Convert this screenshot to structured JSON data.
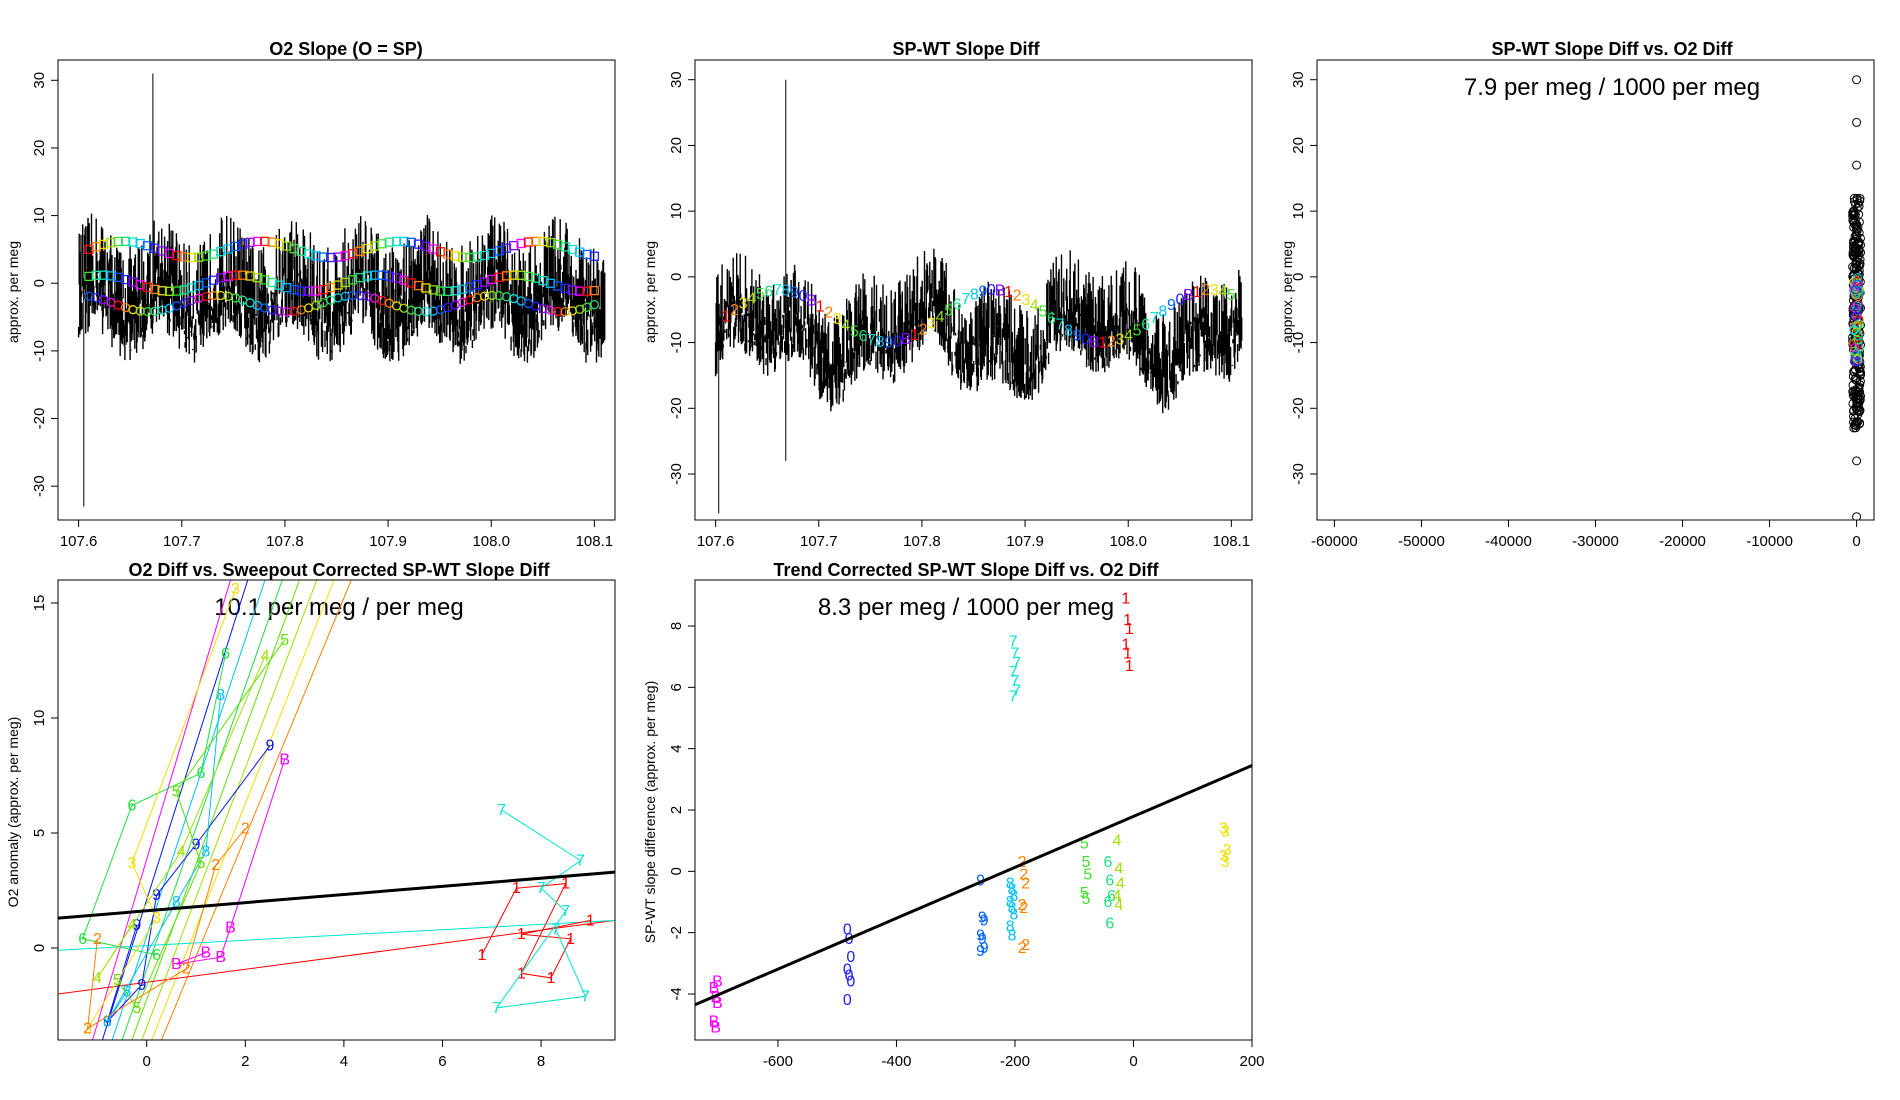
{
  "figure": {
    "panels": [
      {
        "id": "p1",
        "title": "O2 Slope (O = SP)",
        "ylabel": "approx. per meg",
        "xlim": [
          107.58,
          108.12
        ],
        "ylim": [
          -35,
          33
        ],
        "xticks": [
          "107.6",
          "107.7",
          "107.8",
          "107.9",
          "108.0",
          "108.1"
        ],
        "yticks": [
          "-30",
          "-20",
          "-10",
          "0",
          "10",
          "20",
          "30"
        ]
      },
      {
        "id": "p2",
        "title": "SP-WT Slope Diff",
        "ylabel": "approx. per meg",
        "xlim": [
          107.58,
          108.12
        ],
        "ylim": [
          -37,
          33
        ],
        "xticks": [
          "107.6",
          "107.7",
          "107.8",
          "107.9",
          "108.0",
          "108.1"
        ],
        "yticks": [
          "-30",
          "-20",
          "-10",
          "0",
          "10",
          "20",
          "30"
        ]
      },
      {
        "id": "p3",
        "title": "SP-WT Slope Diff vs. O2 Diff",
        "ylabel": "approx. per meg",
        "annotation": "7.9 per meg / 1000 per meg",
        "xlim": [
          -62000,
          2000
        ],
        "ylim": [
          -37,
          33
        ],
        "xticks": [
          "-60000",
          "-50000",
          "-40000",
          "-30000",
          "-20000",
          "-10000",
          "0"
        ],
        "yticks": [
          "-30",
          "-20",
          "-10",
          "0",
          "10",
          "20",
          "30"
        ]
      },
      {
        "id": "p4",
        "title": "O2 Diff vs. Sweepout Corrected SP-WT Slope Diff",
        "ylabel": "O2 anomaly (approx. per meg)",
        "annotation": "10.1 per meg / per meg",
        "xlim": [
          -1.8,
          9.5
        ],
        "ylim": [
          -4,
          16
        ],
        "xticks": [
          "0",
          "2",
          "4",
          "6",
          "8"
        ],
        "yticks": [
          "0",
          "5",
          "10",
          "15"
        ]
      },
      {
        "id": "p5",
        "title": "Trend Corrected SP-WT Slope Diff vs. O2 Diff",
        "ylabel": "SP-WT slope difference (approx. per meg)",
        "annotation": "8.3 per meg / 1000 per meg",
        "xlim": [
          -740,
          200
        ],
        "ylim": [
          -5.5,
          9.5
        ],
        "xticks": [
          "-600",
          "-400",
          "-200",
          "0",
          "200"
        ],
        "yticks": [
          "-4",
          "-2",
          "0",
          "2",
          "4",
          "6",
          "8"
        ]
      }
    ]
  },
  "chart_data": [
    {
      "panel": "p1",
      "type": "line",
      "title": "O2 Slope (O = SP)",
      "ylabel": "approx. per meg",
      "xlim": [
        107.6,
        108.11
      ],
      "series_note": "dense black noise trace about 0, band roughly -10..10, spikes to 31 and -33",
      "spikes": [
        {
          "x": 107.605,
          "y": -33
        },
        {
          "x": 107.672,
          "y": 31
        }
      ],
      "marker_series": [
        {
          "name": "upper squares",
          "marker": "square",
          "y": 5
        },
        {
          "name": "mid squares",
          "marker": "square",
          "y": 0
        },
        {
          "name": "lower circles",
          "marker": "circle",
          "y": -3
        }
      ]
    },
    {
      "panel": "p2",
      "type": "line",
      "title": "SP-WT Slope Diff",
      "ylabel": "approx. per meg",
      "xlim": [
        107.6,
        108.11
      ],
      "series_note": "dense black noise trace centred near -7, band roughly -20..8",
      "spikes": [
        {
          "x": 107.603,
          "y": -36
        },
        {
          "x": 107.668,
          "y": 30
        },
        {
          "x": 107.668,
          "y": -28
        }
      ],
      "digit_labels": [
        {
          "label": "1",
          "y": 0
        },
        {
          "label": "7",
          "y": 0
        },
        {
          "label": "4",
          "y": -2
        },
        {
          "label": "3",
          "y": -5
        },
        {
          "label": "2",
          "y": -9
        },
        {
          "label": "8",
          "y": -8
        },
        {
          "label": "B",
          "y": -10
        },
        {
          "label": "6",
          "y": -6
        }
      ]
    },
    {
      "panel": "p3",
      "type": "scatter",
      "title": "SP-WT Slope Diff vs. O2 Diff",
      "annotation": "7.9 per meg / 1000 per meg",
      "xlim": [
        -62000,
        2000
      ],
      "ylim": [
        -37,
        33
      ],
      "points": [
        {
          "x": 0,
          "y": 30
        },
        {
          "x": 0,
          "y": 23.5
        },
        {
          "x": 0,
          "y": 17
        },
        {
          "x": 0,
          "y": -28
        },
        {
          "x": 0,
          "y": -36.5
        }
      ],
      "cluster": {
        "x": 0,
        "ymin": -23,
        "ymax": 12,
        "colored_band": [
          -13,
          0
        ]
      }
    },
    {
      "panel": "p4",
      "type": "line",
      "title": "O2 Diff vs. Sweepout Corrected SP-WT Slope Diff",
      "annotation": "10.1 per meg / per meg",
      "fit_line": {
        "x": [
          -1.8,
          9.5
        ],
        "y": [
          1.3,
          3.3
        ]
      },
      "groups": [
        {
          "label": "1",
          "color": "#ff0000",
          "points": [
            [
              6.8,
              -0.3
            ],
            [
              7.5,
              2.6
            ],
            [
              8.5,
              2.8
            ],
            [
              7.6,
              -1.1
            ],
            [
              8.2,
              -1.3
            ],
            [
              8.6,
              0.4
            ],
            [
              7.6,
              0.6
            ],
            [
              9.0,
              1.2
            ]
          ]
        },
        {
          "label": "7",
          "color": "#00e5d0",
          "points": [
            [
              7.2,
              6.0
            ],
            [
              8.8,
              3.8
            ],
            [
              8.0,
              2.6
            ],
            [
              8.5,
              1.6
            ],
            [
              7.1,
              -2.6
            ],
            [
              8.9,
              -2.1
            ],
            [
              8.3,
              0.8
            ]
          ]
        },
        {
          "label": "B",
          "color": "#ff00ff",
          "points": [
            [
              2.8,
              8.2
            ],
            [
              1.7,
              0.9
            ],
            [
              1.5,
              -0.4
            ],
            [
              0.6,
              -0.7
            ],
            [
              1.2,
              -0.2
            ]
          ]
        },
        {
          "label": "9",
          "color": "#0010ff",
          "points": [
            [
              2.5,
              8.8
            ],
            [
              1.0,
              4.5
            ],
            [
              0.2,
              2.3
            ],
            [
              -0.1,
              -1.6
            ],
            [
              -0.8,
              -3.2
            ],
            [
              -0.2,
              1.0
            ]
          ]
        },
        {
          "label": "8",
          "color": "#00c0ff",
          "points": [
            [
              1.5,
              11.0
            ],
            [
              1.2,
              4.2
            ],
            [
              0.6,
              2.0
            ],
            [
              -0.8,
              -3.2
            ],
            [
              -0.4,
              -1.9
            ]
          ]
        },
        {
          "label": "6",
          "color": "#20e040",
          "points": [
            [
              1.6,
              12.8
            ],
            [
              1.1,
              7.6
            ],
            [
              -0.3,
              6.2
            ],
            [
              -1.3,
              0.4
            ],
            [
              0.2,
              -0.3
            ]
          ]
        },
        {
          "label": "5",
          "color": "#60e000",
          "points": [
            [
              2.8,
              13.4
            ],
            [
              0.6,
              6.8
            ],
            [
              1.1,
              3.7
            ],
            [
              -0.2,
              -2.6
            ],
            [
              -0.6,
              -1.4
            ]
          ]
        },
        {
          "label": "4",
          "color": "#a0e000",
          "points": [
            [
              2.4,
              12.7
            ],
            [
              0.7,
              4.2
            ],
            [
              -1.0,
              -1.3
            ],
            [
              -0.3,
              1.0
            ]
          ]
        },
        {
          "label": "3",
          "color": "#f0e000",
          "points": [
            [
              1.8,
              15.6
            ],
            [
              -0.3,
              3.7
            ],
            [
              0.2,
              1.3
            ],
            [
              -1.2,
              -3.5
            ]
          ]
        },
        {
          "label": "2",
          "color": "#ff8000",
          "points": [
            [
              2.0,
              5.2
            ],
            [
              1.4,
              3.6
            ],
            [
              0.8,
              -0.9
            ],
            [
              -1.2,
              -3.5
            ],
            [
              -1.0,
              0.4
            ]
          ]
        }
      ]
    },
    {
      "panel": "p5",
      "type": "scatter",
      "title": "Trend Corrected SP-WT Slope Diff vs. O2 Diff",
      "annotation": "8.3 per meg / 1000 per meg",
      "fit_line": {
        "x": [
          -740,
          200
        ],
        "y": [
          -4.35,
          3.45
        ]
      },
      "groups": [
        {
          "label": "B",
          "color": "#ff00ff",
          "x": -705,
          "y": [
            -3.8,
            -4.1,
            -4.3,
            -4.9,
            -5.1,
            -3.6
          ]
        },
        {
          "label": "0",
          "color": "#2020ff",
          "x": -480,
          "y": [
            -1.9,
            -2.2,
            -2.8,
            -3.2,
            -3.4,
            -3.6,
            -4.2
          ]
        },
        {
          "label": "9",
          "color": "#0060ff",
          "x": -255,
          "y": [
            -0.3,
            -1.5,
            -1.6,
            -2.1,
            -2.2,
            -2.5,
            -2.6
          ]
        },
        {
          "label": "8",
          "color": "#00c0ff",
          "x": -205,
          "y": [
            -0.4,
            -0.6,
            -0.8,
            -1.0,
            -1.2,
            -1.4,
            -1.8,
            -2.1
          ]
        },
        {
          "label": "2",
          "color": "#ff8000",
          "x": -185,
          "y": [
            0.3,
            -0.1,
            -0.4,
            -1.1,
            -1.2,
            -2.4,
            -2.5
          ]
        },
        {
          "label": "7",
          "color": "#00e5d0",
          "x": -200,
          "y": [
            7.5,
            7.1,
            6.8,
            6.5,
            6.2,
            5.9,
            5.7
          ]
        },
        {
          "label": "1",
          "color": "#ff0000",
          "x": -10,
          "y": [
            8.9,
            8.2,
            7.9,
            7.4,
            7.1,
            6.7
          ]
        },
        {
          "label": "5",
          "color": "#40e030",
          "x": -80,
          "y": [
            0.9,
            0.3,
            -0.1,
            -0.7,
            -0.9
          ]
        },
        {
          "label": "6",
          "color": "#20e080",
          "x": -40,
          "y": [
            0.3,
            -0.3,
            -0.8,
            -1.0,
            -1.7
          ]
        },
        {
          "label": "4",
          "color": "#a0e000",
          "x": -25,
          "y": [
            1.0,
            0.1,
            -0.4,
            -0.8,
            -1.1
          ]
        },
        {
          "label": "3",
          "color": "#f0e000",
          "x": 155,
          "y": [
            1.4,
            1.3,
            0.7,
            0.5,
            0.3
          ]
        }
      ]
    }
  ]
}
